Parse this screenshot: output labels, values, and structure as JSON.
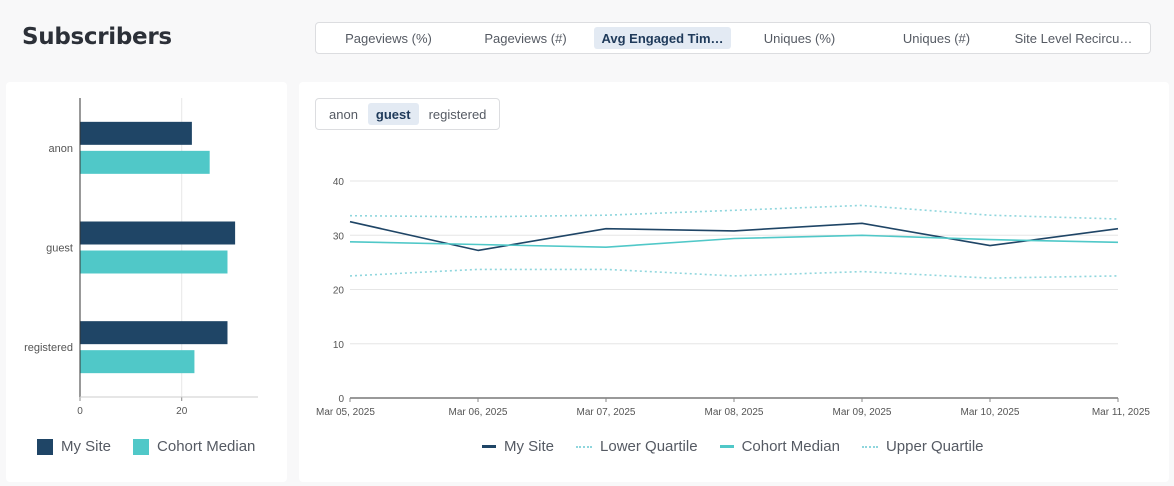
{
  "page": {
    "title": "Subscribers"
  },
  "metric_tabs": [
    {
      "label": "Pageviews (%)",
      "active": false
    },
    {
      "label": "Pageviews (#)",
      "active": false
    },
    {
      "label": "Avg Engaged Tim…",
      "active": true
    },
    {
      "label": "Uniques (%)",
      "active": false
    },
    {
      "label": "Uniques (#)",
      "active": false
    },
    {
      "label": "Site Level Recircu…",
      "active": false
    }
  ],
  "segment_tabs": [
    {
      "label": "anon",
      "active": false
    },
    {
      "label": "guest",
      "active": true
    },
    {
      "label": "registered",
      "active": false
    }
  ],
  "colors": {
    "my_site": "#1f4566",
    "cohort_median": "#50c8c8",
    "quartile": "#8fd6dd",
    "grid": "#e6e6e6"
  },
  "chart_data": [
    {
      "type": "bar",
      "orientation": "horizontal",
      "categories": [
        "anon",
        "guest",
        "registered"
      ],
      "series": [
        {
          "name": "My Site",
          "values": [
            22,
            30.5,
            29
          ]
        },
        {
          "name": "Cohort Median",
          "values": [
            25.5,
            29,
            22.5
          ]
        }
      ],
      "xlim": [
        0,
        35
      ],
      "xticks": [
        "0",
        "20"
      ],
      "legend": "bottom"
    },
    {
      "type": "line",
      "x": [
        "Mar 05, 2025",
        "Mar 06, 2025",
        "Mar 07, 2025",
        "Mar 08, 2025",
        "Mar 09, 2025",
        "Mar 10, 2025",
        "Mar 11, 2025"
      ],
      "series": [
        {
          "name": "My Site",
          "values": [
            32.5,
            27.2,
            31.2,
            30.8,
            32.2,
            28.1,
            31.2
          ]
        },
        {
          "name": "Lower Quartile",
          "values": [
            22.5,
            23.7,
            23.7,
            22.5,
            23.3,
            22.1,
            22.5
          ]
        },
        {
          "name": "Cohort Median",
          "values": [
            28.8,
            28.3,
            27.8,
            29.4,
            30.0,
            29.2,
            28.7
          ]
        },
        {
          "name": "Upper Quartile",
          "values": [
            33.6,
            33.4,
            33.7,
            34.6,
            35.5,
            33.7,
            33.0
          ]
        }
      ],
      "ylim": [
        0,
        40
      ],
      "yticks": [
        "0",
        "10",
        "20",
        "30",
        "40"
      ],
      "legend": "bottom"
    }
  ]
}
